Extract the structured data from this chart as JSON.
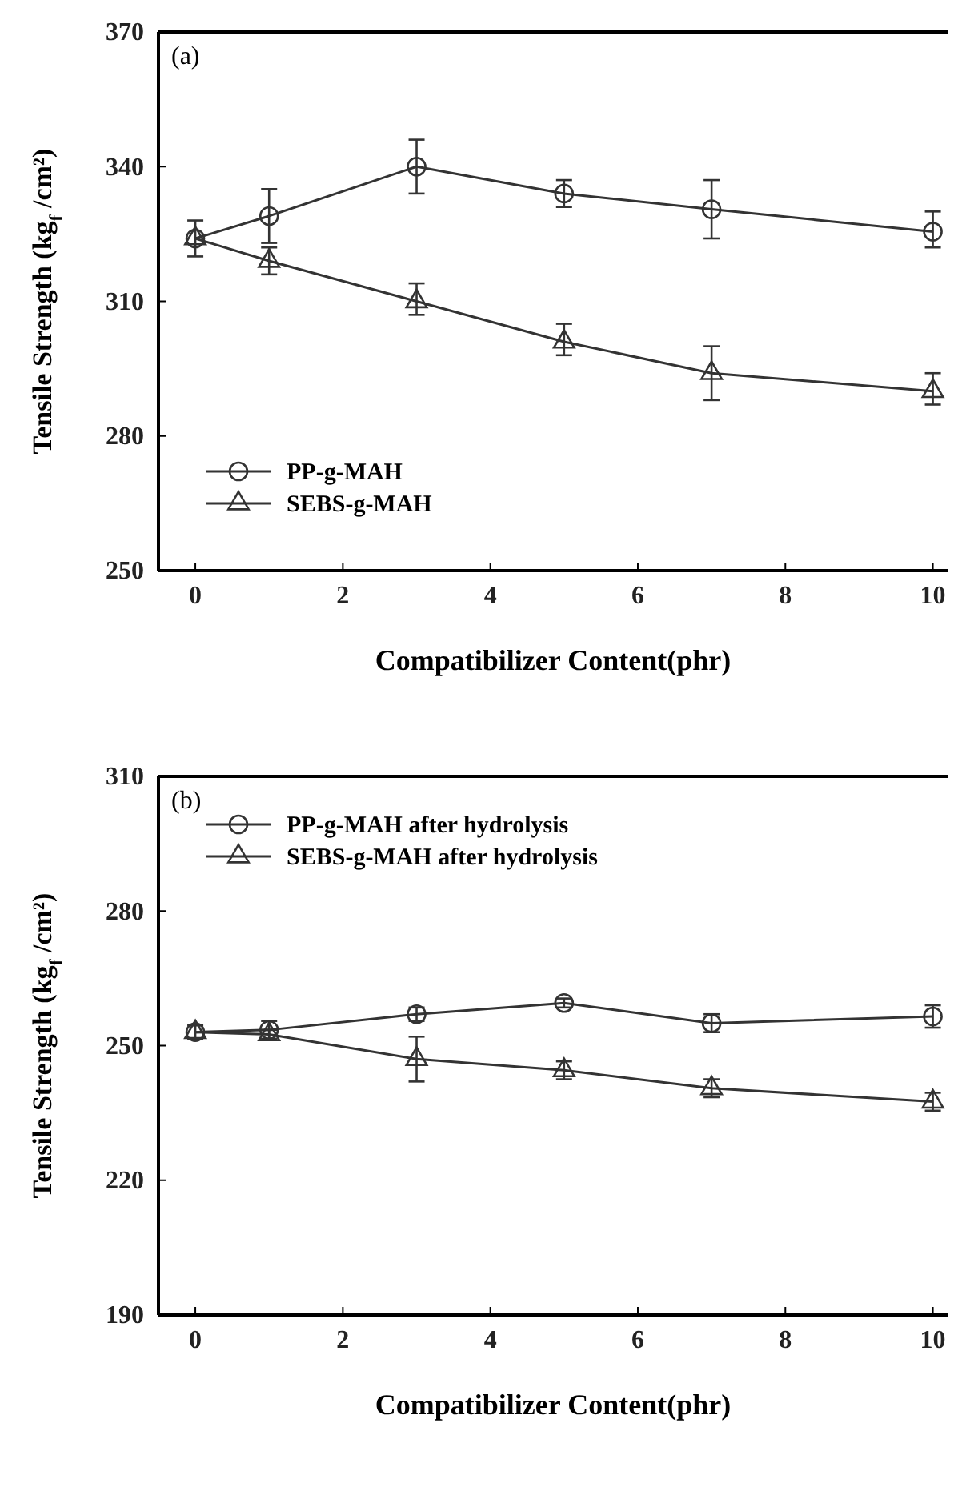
{
  "chart_data": [
    {
      "type": "line",
      "annotations": [
        "(a)"
      ],
      "xlabel": "Compatibilizer Content(phr)",
      "ylabel": "Tensile Strength (kg$_{f}$ /cm²)",
      "x": [
        0,
        1,
        3,
        5,
        7,
        10
      ],
      "xlim": [
        -0.5,
        10.2
      ],
      "xticks": [
        0,
        2,
        4,
        6,
        8,
        10
      ],
      "ylim": [
        250,
        370
      ],
      "yticks": [
        250,
        280,
        310,
        340,
        370
      ],
      "legend": "bottom left",
      "grid": false,
      "line_style": "solid",
      "series": [
        {
          "name": "PP-g-MAH",
          "color": "#333333",
          "marker": "circle",
          "values": [
            324,
            329,
            340,
            334,
            330.5,
            325.5
          ],
          "errors": [
            [
              320,
              328
            ],
            [
              323,
              335
            ],
            [
              334,
              346
            ],
            [
              331,
              337
            ],
            [
              324,
              337
            ],
            [
              322,
              330
            ]
          ]
        },
        {
          "name": "SEBS-g-MAH",
          "color": "#333333",
          "marker": "triangle",
          "values": [
            324,
            319,
            310,
            301,
            294,
            290
          ],
          "errors": [
            null,
            [
              316,
              322
            ],
            [
              307,
              314
            ],
            [
              298,
              305
            ],
            [
              288,
              300
            ],
            [
              287,
              294
            ]
          ]
        }
      ]
    },
    {
      "type": "line",
      "annotations": [
        "(b)"
      ],
      "xlabel": "Compatibilizer Content(phr)",
      "ylabel": "Tensile Strength (kg$_{f}$ /cm²)",
      "x": [
        0,
        1,
        3,
        5,
        7,
        10
      ],
      "xlim": [
        -0.5,
        10.2
      ],
      "xticks": [
        0,
        2,
        4,
        6,
        8,
        10
      ],
      "ylim": [
        190,
        310
      ],
      "yticks": [
        190,
        220,
        250,
        280,
        310
      ],
      "legend": "top left",
      "grid": false,
      "line_style": "solid",
      "series": [
        {
          "name": "PP-g-MAH after hydrolysis",
          "color": "#333333",
          "marker": "circle",
          "values": [
            253,
            253.5,
            257,
            259.5,
            255,
            256.5
          ],
          "errors": [
            1.5,
            2,
            1.5,
            1,
            2,
            2.5
          ]
        },
        {
          "name": "SEBS-g-MAH after hydrolysis",
          "color": "#333333",
          "marker": "triangle",
          "values": [
            253,
            252.5,
            247,
            244.5,
            240.5,
            237.5
          ],
          "errors": [
            null,
            1,
            5,
            2,
            2,
            2
          ]
        }
      ]
    }
  ]
}
